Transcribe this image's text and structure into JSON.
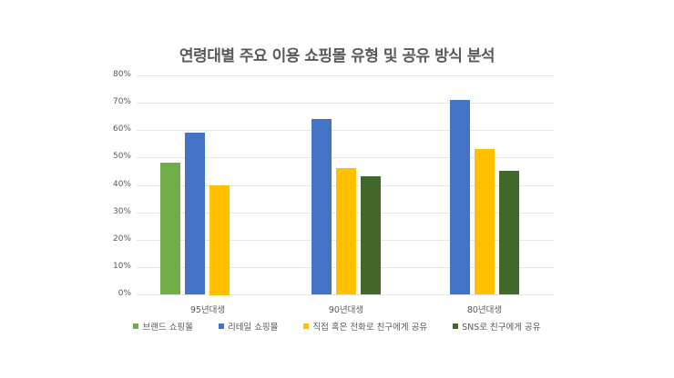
{
  "chart_data": {
    "type": "bar",
    "title": "연령대별 주요 이용 쇼핑몰 유형 및 공유 방식 분석",
    "xlabel": "",
    "ylabel": "",
    "ylim": [
      0,
      80
    ],
    "yticks": [
      "0%",
      "10%",
      "20%",
      "30%",
      "40%",
      "50%",
      "60%",
      "70%",
      "80%"
    ],
    "grid": true,
    "legend_position": "bottom",
    "categories": [
      "95년대생",
      "90년대생",
      "80년대생"
    ],
    "series": [
      {
        "name": "브랜드 쇼핑몰",
        "color": "#70ad47",
        "values": [
          48,
          null,
          null
        ]
      },
      {
        "name": "리테일 쇼핑몰",
        "color": "#4472c4",
        "values": [
          59,
          64,
          71
        ]
      },
      {
        "name": "직접 혹은 전화로 친구에게 공유",
        "color": "#ffc000",
        "values": [
          40,
          46,
          53
        ]
      },
      {
        "name": "SNS로 친구에게 공유",
        "color": "#43682b",
        "values": [
          null,
          43,
          45
        ]
      }
    ]
  }
}
